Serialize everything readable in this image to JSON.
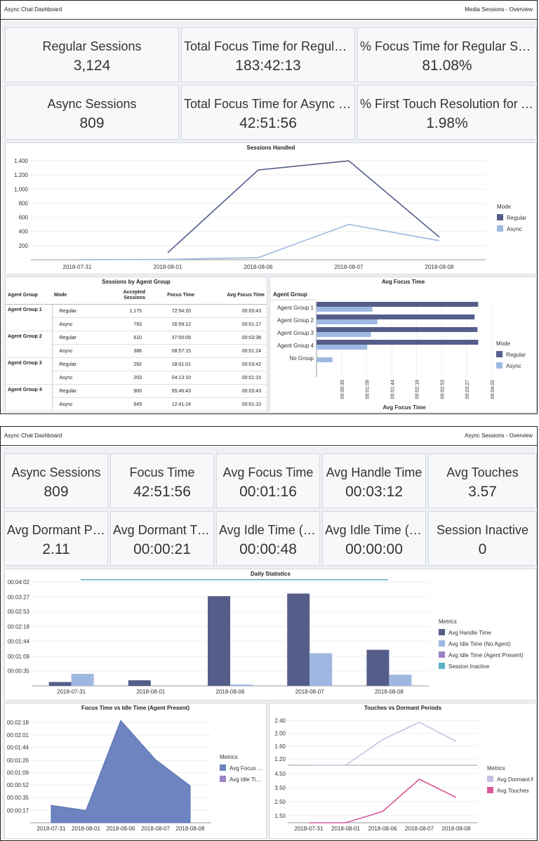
{
  "colors": {
    "regular": "#555e8a",
    "async": "#9fb8e2",
    "purple": "#9a83c4",
    "teal": "#5ab3c4",
    "dormant": "#c8c0e0",
    "touches": "#d85a9a",
    "area": "#6d84c0"
  },
  "panel1": {
    "title": "Async Chat Dashboard",
    "breadcrumb": "Media Sessions  -  Overview",
    "tiles": [
      {
        "title": "Regular Sessions",
        "value": "3,124"
      },
      {
        "title": "Total Focus Time for Regular Sessions",
        "value": "183:42:13"
      },
      {
        "title": "% Focus Time for Regular Sessions",
        "value": "81.08%"
      },
      {
        "title": "Async Sessions",
        "value": "809"
      },
      {
        "title": "Total Focus Time for Async Sessions",
        "value": "42:51:56"
      },
      {
        "title": "% First Touch Resolution for Async Sessions",
        "value": "1.98%"
      }
    ],
    "sessions_handled": {
      "title": "Sessions Handled",
      "legend_title": "Mode",
      "legend": [
        "Regular",
        "Async"
      ],
      "chart_data": {
        "type": "line",
        "categories": [
          "2018-07-31",
          "2018-08-01",
          "2018-08-06",
          "2018-08-07",
          "2018-08-08"
        ],
        "yticks": [
          "200",
          "400",
          "600",
          "800",
          "1,000",
          "1,200",
          "1,400"
        ],
        "ylim": [
          0,
          1450
        ],
        "series": [
          {
            "name": "Regular",
            "values": [
              null,
              100,
              1270,
              1400,
              320
            ]
          },
          {
            "name": "Async",
            "values": [
              0,
              5,
              30,
              500,
              270
            ]
          }
        ]
      }
    },
    "agent_table": {
      "title": "Sessions by Agent Group",
      "headers": [
        "Agent Group",
        "Mode",
        "Accepted Sessions",
        "Focus Time",
        "Avg Focus Time"
      ],
      "groups": [
        {
          "name": "Agent Group 1",
          "rows": [
            [
              "Regular",
              "1,175",
              "72:54:20",
              "00:03:43"
            ],
            [
              "Async",
              "793",
              "16:59:12",
              "00:01:17"
            ]
          ]
        },
        {
          "name": "Agent Group 2",
          "rows": [
            [
              "Regular",
              "610",
              "37:00:09",
              "00:03:38"
            ],
            [
              "Async",
              "386",
              "08:57:15",
              "00:01:24"
            ]
          ]
        },
        {
          "name": "Agent Group 3",
          "rows": [
            [
              "Regular",
              "292",
              "18:01:01",
              "00:03:42"
            ],
            [
              "Async",
              "203",
              "04:13:10",
              "00:01:15"
            ]
          ]
        },
        {
          "name": "Agent Group 4",
          "rows": [
            [
              "Regular",
              "900",
              "55:46:43",
              "00:03:43"
            ],
            [
              "Async",
              "649",
              "12:41:24",
              "00:01:10"
            ]
          ]
        }
      ]
    },
    "avg_focus": {
      "title": "Avg Focus Time",
      "header": "Agent Group",
      "xlabel": "Avg Focus Time",
      "legend_title": "Mode",
      "legend": [
        "Regular",
        "Async"
      ],
      "chart_data": {
        "type": "bar",
        "categories": [
          "Agent Group 1",
          "Agent Group 2",
          "Agent Group 3",
          "Agent Group 4",
          "No Group"
        ],
        "xticks": [
          "00:00:35",
          "00:01:09",
          "00:01:44",
          "00:02:18",
          "00:02:53",
          "00:03:27",
          "00:04:02"
        ],
        "xlim_seconds": [
          0,
          242
        ],
        "series": [
          {
            "name": "Regular",
            "values_seconds": [
              223,
              218,
              222,
              223,
              null
            ]
          },
          {
            "name": "Async",
            "values_seconds": [
              77,
              84,
              75,
              70,
              22
            ]
          }
        ]
      }
    }
  },
  "panel2": {
    "title": "Async Chat Dashboard",
    "breadcrumb": "Async Sessions  -  Overview",
    "tiles": [
      {
        "title": "Async Sessions",
        "value": "809"
      },
      {
        "title": "Focus Time",
        "value": "42:51:56"
      },
      {
        "title": "Avg Focus Time",
        "value": "00:01:16"
      },
      {
        "title": "Avg Handle Time",
        "value": "00:03:12"
      },
      {
        "title": "Avg Touches",
        "value": "3.57"
      },
      {
        "title": "Avg Dormant Periods",
        "value": "2.11"
      },
      {
        "title": "Avg Dormant Time",
        "value": "00:00:21"
      },
      {
        "title": "Avg Idle Time (No Agent)",
        "value": "00:00:48"
      },
      {
        "title": "Avg Idle Time (Agent Present)",
        "value": "00:00:00"
      },
      {
        "title": "Session Inactive",
        "value": "0"
      }
    ],
    "daily": {
      "title": "Daily Statistics",
      "legend_title": "Metrics",
      "legend": [
        "Avg Handle Time",
        "Avg Idle Time (No Agent)",
        "Avg Idle Time (Agent Present)",
        "Session Inactive"
      ],
      "chart_data": {
        "type": "bar",
        "categories": [
          "2018-07-31",
          "2018-08-01",
          "2018-08-06",
          "2018-08-07",
          "2018-08-08"
        ],
        "yticks": [
          "00:00:35",
          "00:01:09",
          "00:01:44",
          "00:02:18",
          "00:02:53",
          "00:03:27",
          "00:04:02"
        ],
        "ylim_seconds": [
          0,
          242
        ],
        "series": [
          {
            "name": "Avg Handle Time",
            "values_seconds": [
              9,
              13,
              209,
              215,
              84
            ]
          },
          {
            "name": "Avg Idle Time (No Agent)",
            "values_seconds": [
              28,
              0,
              3,
              76,
              26
            ]
          }
        ]
      }
    },
    "focus_idle": {
      "title": "Focus Time vs Idle Time (Agent Present)",
      "legend_title": "Metrics",
      "legend": [
        "Avg Focus Time",
        "Avg Idle Time (Agent Present)"
      ],
      "chart_data": {
        "type": "area",
        "categories": [
          "2018-07-31",
          "2018-08-01",
          "2018-08-06",
          "2018-08-07",
          "2018-08-08"
        ],
        "yticks": [
          "00:00:17",
          "00:00:35",
          "00:00:52",
          "00:01:09",
          "00:01:26",
          "00:01:44",
          "00:02:01",
          "00:02:18"
        ],
        "ylim_seconds": [
          0,
          145
        ],
        "series": [
          {
            "name": "Avg Focus Time",
            "values_seconds": [
              24,
              17,
              141,
              87,
              51
            ]
          }
        ]
      }
    },
    "touches": {
      "title": "Touches vs Dormant Periods",
      "legend_title": "Metrics",
      "legend": [
        "Avg Dormant Periods",
        "Avg Touches"
      ],
      "chart_data": {
        "type": "line",
        "categories": [
          "2018-07-31",
          "2018-08-01",
          "2018-08-06",
          "2018-08-07",
          "2018-08-08"
        ],
        "panels": [
          {
            "series": "Avg Dormant Periods",
            "yticks": [
              "1.20",
              "1.60",
              "2.00",
              "2.40"
            ],
            "ylim": [
              1.0,
              2.5
            ],
            "values": [
              1.0,
              1.0,
              1.8,
              2.35,
              1.75
            ]
          },
          {
            "series": "Avg Touches",
            "yticks": [
              "1.50",
              "2.50",
              "3.50",
              "4.50"
            ],
            "ylim": [
              1.0,
              4.8
            ],
            "values": [
              1.0,
              1.0,
              1.8,
              4.1,
              2.8
            ]
          }
        ]
      }
    }
  }
}
